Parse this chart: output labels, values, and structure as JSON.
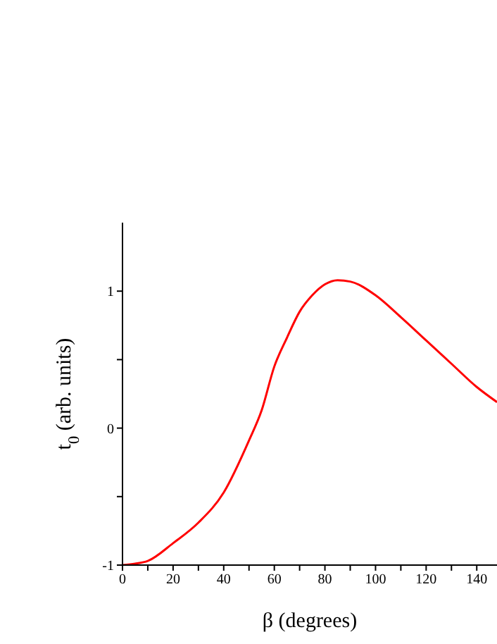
{
  "chart_data": {
    "type": "line",
    "xlabel": "β (degrees)",
    "ylabel": "t$_{0}$ (arb. units)",
    "x": [
      0,
      5,
      10,
      20,
      30,
      40,
      50,
      55,
      60,
      65,
      70,
      75,
      80,
      85,
      90,
      100,
      110,
      120,
      130,
      140,
      148
    ],
    "series": [
      {
        "color": "#ff0000",
        "values": [
          -1,
          -0.99,
          -0.97,
          -0.84,
          -0.69,
          -0.47,
          -0.09,
          0.13,
          0.45,
          0.66,
          0.85,
          0.97,
          1.05,
          1.08,
          1.07,
          0.97,
          0.81,
          0.64,
          0.47,
          0.3,
          0.19
        ]
      }
    ],
    "xlim": [
      0,
      148
    ],
    "xticks": [
      0,
      {
        "value": 10,
        "label": null
      },
      20,
      {
        "value": 30,
        "label": null
      },
      40,
      {
        "value": 50,
        "label": null
      },
      60,
      {
        "value": 70,
        "label": null
      },
      80,
      {
        "value": 90,
        "label": null
      },
      100,
      {
        "value": 110,
        "label": null
      },
      120,
      {
        "value": 130,
        "label": null
      },
      140
    ],
    "ylim": [
      -1,
      1.5
    ],
    "yticks": [
      -1,
      {
        "value": -0.5,
        "label": null
      },
      0,
      {
        "value": 0.5,
        "label": null
      },
      1
    ],
    "grid": false,
    "legend": false,
    "marker": "none",
    "line_style": "solid"
  }
}
